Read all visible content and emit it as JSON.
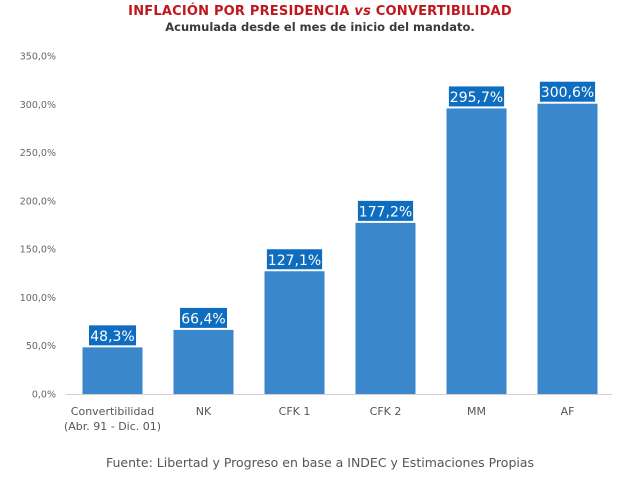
{
  "chart_data": {
    "type": "bar",
    "title_parts": [
      "INFLACIÓN POR PRESIDENCIA ",
      "vs",
      " CONVERTIBILIDAD"
    ],
    "title": "INFLACIÓN POR PRESIDENCIA vs CONVERTIBILIDAD",
    "subtitle": "Acumulada desde el mes de inicio del mandato.",
    "xlabel": "",
    "ylabel": "",
    "categories": [
      [
        "Convertibilidad",
        "(Abr. 91 - Dic. 01)"
      ],
      [
        "NK"
      ],
      [
        "CFK 1"
      ],
      [
        "CFK 2"
      ],
      [
        "MM"
      ],
      [
        "AF"
      ]
    ],
    "values": [
      48.3,
      66.4,
      127.1,
      177.2,
      295.7,
      300.6
    ],
    "data_labels": [
      "48,3%",
      "66,4%",
      "127,1%",
      "177,2%",
      "295,7%",
      "300,6%"
    ],
    "ylim": [
      0,
      350
    ],
    "yticks": [
      0,
      50,
      100,
      150,
      200,
      250,
      300,
      350
    ],
    "ytick_labels": [
      "0,0%",
      "50,0%",
      "100,0%",
      "150,0%",
      "200,0%",
      "250,0%",
      "300,0%",
      "350,0%"
    ],
    "grid": false,
    "legend": "none",
    "colors": {
      "bar": "#3a87cc",
      "label_bg": "#0f6dbf",
      "title": "#c0161d",
      "axis": "#d0d0d0"
    },
    "source": "Fuente: Libertad y Progreso en base a INDEC y Estimaciones Propias"
  }
}
